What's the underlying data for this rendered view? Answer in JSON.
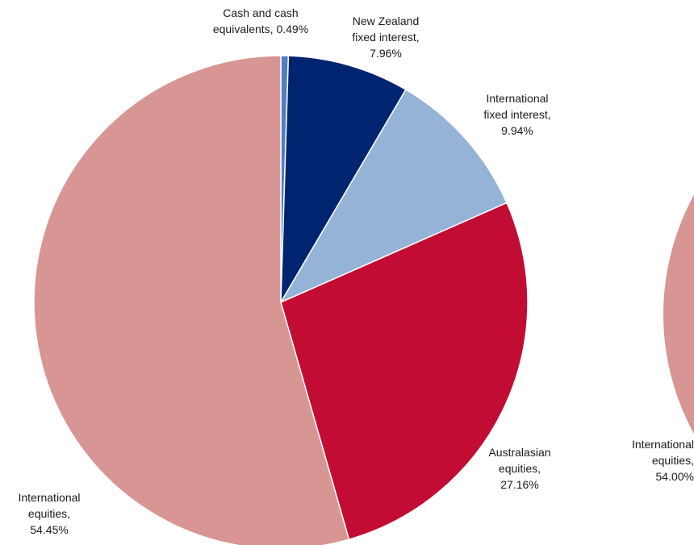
{
  "chart_data": [
    {
      "type": "pie",
      "slices": [
        {
          "line1": "Cash and cash",
          "line2": "equivalents, 0.49%",
          "line3": "",
          "value": 0.49,
          "color": "#4f7fc1"
        },
        {
          "line1": "New Zealand",
          "line2": "fixed interest,",
          "line3": "7.96%",
          "value": 7.96,
          "color": "#002570"
        },
        {
          "line1": "International",
          "line2": "fixed interest,",
          "line3": "9.94%",
          "value": 9.94,
          "color": "#95b3d7"
        },
        {
          "line1": "Australasian",
          "line2": "equities,",
          "line3": "27.16%",
          "value": 27.16,
          "color": "#c30c33"
        },
        {
          "line1": "International",
          "line2": "equities,",
          "line3": "54.45%",
          "value": 54.45,
          "color": "#d79593"
        }
      ]
    },
    {
      "type": "pie",
      "partial": true,
      "slices": [
        {
          "line1": "International",
          "line2": "equities,",
          "line3": "54.00%",
          "value": 54.0,
          "color": "#d79593"
        }
      ]
    }
  ]
}
